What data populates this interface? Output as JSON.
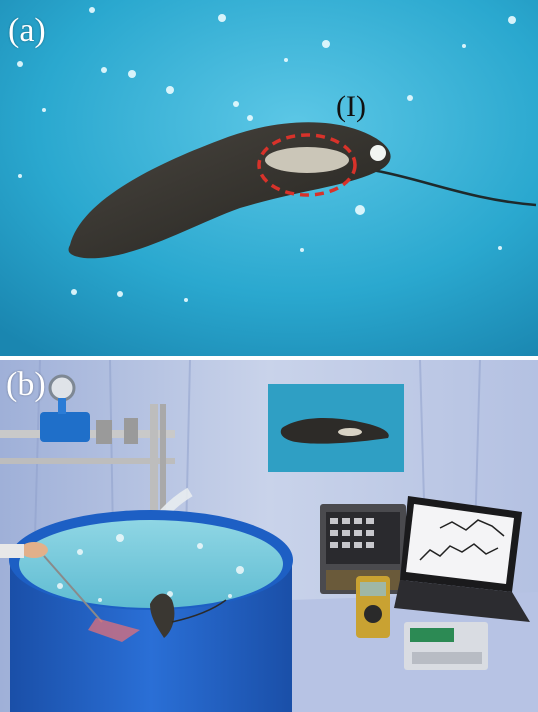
{
  "panels": {
    "a": {
      "label": "(a)",
      "annotation": "(I)"
    },
    "b": {
      "label": "(b)"
    }
  },
  "colors": {
    "water": "#2aa8cf",
    "marker_circle": "#d8322a",
    "tank_blue": "#1d5fc4",
    "backdrop": "#c9d3ea"
  }
}
